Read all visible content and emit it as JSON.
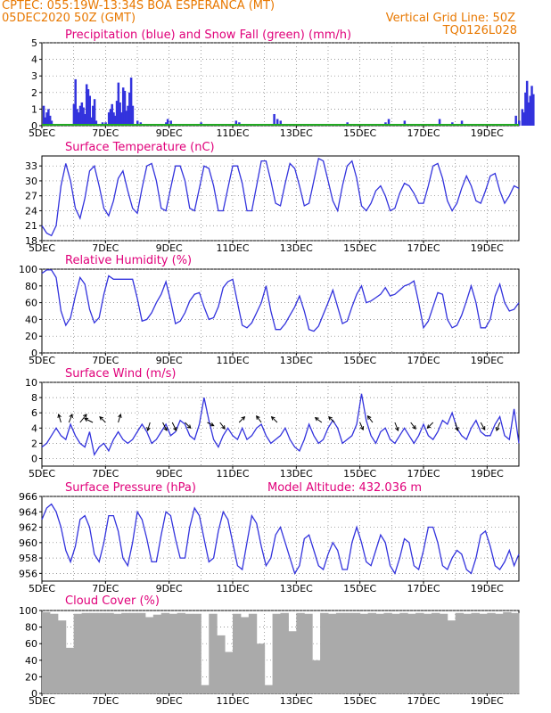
{
  "header": {
    "line1_left": "CPTEC:   055:19W-13:34S  BOA ESPERANCA (MT)",
    "line2_left": "05DEC2020 50Z (GMT)",
    "line2_right": "Vertical Grid Line: 50Z",
    "line3_right": "TQ0126L028",
    "header_color": "#e87800"
  },
  "colors": {
    "title": "#e0007a",
    "line": "#3333dd",
    "snow": "#22aa22",
    "cloud": "#aaaaaa",
    "axis": "#000000"
  },
  "date_ticks": [
    "5DEC",
    "7DEC",
    "9DEC",
    "11DEC",
    "13DEC",
    "15DEC",
    "17DEC",
    "19DEC"
  ],
  "chart_data": [
    {
      "type": "bar",
      "title": "Precipitation (blue) and Snow Fall (green) (mm/h)",
      "ylim": [
        0,
        5
      ],
      "yticks": [
        "0",
        "1",
        "2",
        "3",
        "4",
        "5"
      ],
      "xlim_days": [
        0,
        15
      ],
      "series": [
        {
          "name": "Precipitation",
          "x": [
            0.05,
            0.1,
            0.15,
            0.2,
            0.25,
            0.3,
            1.0,
            1.05,
            1.1,
            1.15,
            1.2,
            1.25,
            1.3,
            1.35,
            1.4,
            1.45,
            1.5,
            1.55,
            1.6,
            1.65,
            1.7,
            1.9,
            2.0,
            2.1,
            2.15,
            2.2,
            2.25,
            2.3,
            2.35,
            2.4,
            2.45,
            2.5,
            2.55,
            2.6,
            2.65,
            2.7,
            2.75,
            2.8,
            2.85,
            3.0,
            3.1,
            3.3,
            3.9,
            3.95,
            4.0,
            4.05,
            4.4,
            4.7,
            5.0,
            6.0,
            6.1,
            6.2,
            6.3,
            7.0,
            7.1,
            7.3,
            7.4,
            7.5,
            9.5,
            9.6,
            10.8,
            10.9,
            11.4,
            11.9,
            12.5,
            12.9,
            13.1,
            13.2,
            14.9,
            15.0,
            15.1,
            15.15,
            15.2,
            15.25,
            15.3,
            15.35,
            15.4,
            15.45,
            18.5
          ],
          "values": [
            1.2,
            0.5,
            0.8,
            1.0,
            0.6,
            0.3,
            1.3,
            2.8,
            1.0,
            0.8,
            1.2,
            1.4,
            1.1,
            0.7,
            2.5,
            2.2,
            1.8,
            0.5,
            1.2,
            1.6,
            0.3,
            0.2,
            0.2,
            0.8,
            1.0,
            1.3,
            0.8,
            0.6,
            1.5,
            2.6,
            1.4,
            0.8,
            2.3,
            2.1,
            0.9,
            1.2,
            2.0,
            2.9,
            1.2,
            0.3,
            0.2,
            0.1,
            0.2,
            0.4,
            0.1,
            0.3,
            0.1,
            0.1,
            0.2,
            0.1,
            0.3,
            0.2,
            0.1,
            0.1,
            0.1,
            0.7,
            0.4,
            0.3,
            0.1,
            0.2,
            0.2,
            0.4,
            0.3,
            0.1,
            0.4,
            0.2,
            0.1,
            0.3,
            0.6,
            0.3,
            1.0,
            0.8,
            2.0,
            2.7,
            1.4,
            1.8,
            2.4,
            1.9,
            0.9
          ]
        },
        {
          "name": "Snow Fall",
          "values": [
            0
          ]
        }
      ]
    },
    {
      "type": "line",
      "title": "Surface Temperature (nC)",
      "ylim": [
        18,
        35
      ],
      "yticks": [
        "18",
        "21",
        "24",
        "27",
        "30",
        "33"
      ],
      "xlim_days": [
        0,
        15
      ],
      "x": [
        0,
        0.15,
        0.3,
        0.45,
        0.6,
        0.75,
        0.9,
        1.05,
        1.2,
        1.35,
        1.5,
        1.65,
        1.8,
        1.95,
        2.1,
        2.25,
        2.4,
        2.55,
        2.7,
        2.85,
        3.0,
        3.15,
        3.3,
        3.45,
        3.6,
        3.75,
        3.9,
        4.05,
        4.2,
        4.35,
        4.5,
        4.65,
        4.8,
        4.95,
        5.1,
        5.25,
        5.4,
        5.55,
        5.7,
        5.85,
        6.0,
        6.15,
        6.3,
        6.45,
        6.6,
        6.75,
        6.9,
        7.05,
        7.2,
        7.35,
        7.5,
        7.65,
        7.8,
        7.95,
        8.1,
        8.25,
        8.4,
        8.55,
        8.7,
        8.85,
        9.0,
        9.15,
        9.3,
        9.45,
        9.6,
        9.75,
        9.9,
        10.05,
        10.2,
        10.35,
        10.5,
        10.65,
        10.8,
        10.95,
        11.1,
        11.25,
        11.4,
        11.55,
        11.7,
        11.85,
        12.0,
        12.15,
        12.3,
        12.45,
        12.6,
        12.75,
        12.9,
        13.05,
        13.2,
        13.35,
        13.5,
        13.65,
        13.8,
        13.95,
        14.1,
        14.25,
        14.4,
        14.55,
        14.7,
        14.85,
        15.0
      ],
      "values": [
        21,
        19.5,
        19,
        21,
        29,
        33.5,
        30,
        24.5,
        22.5,
        26.5,
        32,
        33,
        29,
        24.5,
        23,
        26,
        30.5,
        32,
        28,
        24.5,
        23.5,
        28.5,
        33,
        33.5,
        30,
        24.5,
        24,
        28.5,
        33,
        33,
        30,
        24.5,
        24,
        28.5,
        33,
        32.5,
        29,
        24,
        24,
        28.5,
        33,
        33,
        29.5,
        24,
        24,
        29,
        34,
        34,
        30,
        25.5,
        25,
        29.5,
        33.5,
        32.5,
        29,
        25,
        25.5,
        30,
        34.5,
        34,
        30,
        26,
        24,
        29,
        33,
        34,
        30.5,
        25,
        24,
        25.5,
        28,
        29,
        27,
        24,
        24.5,
        27.5,
        29.5,
        29,
        27.5,
        25.5,
        25.5,
        29,
        33,
        33.5,
        30.5,
        26,
        24,
        25.5,
        28.5,
        31,
        29,
        26,
        25.5,
        28,
        31,
        31.5,
        28,
        25.5,
        27,
        29,
        28.5
      ]
    },
    {
      "type": "line",
      "title": "Relative Humidity (%)",
      "ylim": [
        0,
        100
      ],
      "yticks": [
        "0",
        "20",
        "40",
        "60",
        "80",
        "100"
      ],
      "xlim_days": [
        0,
        15
      ],
      "x": [
        0,
        0.15,
        0.3,
        0.45,
        0.6,
        0.75,
        0.9,
        1.05,
        1.2,
        1.35,
        1.5,
        1.65,
        1.8,
        1.95,
        2.1,
        2.25,
        2.4,
        2.55,
        2.7,
        2.85,
        3.0,
        3.15,
        3.3,
        3.45,
        3.6,
        3.75,
        3.9,
        4.05,
        4.2,
        4.35,
        4.5,
        4.65,
        4.8,
        4.95,
        5.1,
        5.25,
        5.4,
        5.55,
        5.7,
        5.85,
        6.0,
        6.15,
        6.3,
        6.45,
        6.6,
        6.75,
        6.9,
        7.05,
        7.2,
        7.35,
        7.5,
        7.65,
        7.8,
        7.95,
        8.1,
        8.25,
        8.4,
        8.55,
        8.7,
        8.85,
        9.0,
        9.15,
        9.3,
        9.45,
        9.6,
        9.75,
        9.9,
        10.05,
        10.2,
        10.35,
        10.5,
        10.65,
        10.8,
        10.95,
        11.1,
        11.25,
        11.4,
        11.55,
        11.7,
        11.85,
        12.0,
        12.15,
        12.3,
        12.45,
        12.6,
        12.75,
        12.9,
        13.05,
        13.2,
        13.35,
        13.5,
        13.65,
        13.8,
        13.95,
        14.1,
        14.25,
        14.4,
        14.55,
        14.7,
        14.85,
        15.0
      ],
      "values": [
        95,
        99,
        99,
        90,
        50,
        33,
        42,
        68,
        90,
        82,
        52,
        36,
        42,
        70,
        92,
        88,
        88,
        88,
        88,
        88,
        65,
        38,
        40,
        48,
        60,
        70,
        85,
        62,
        35,
        38,
        48,
        62,
        70,
        72,
        55,
        40,
        42,
        55,
        78,
        85,
        88,
        60,
        33,
        30,
        36,
        48,
        60,
        80,
        50,
        28,
        28,
        35,
        45,
        55,
        68,
        50,
        28,
        26,
        32,
        46,
        60,
        75,
        55,
        35,
        38,
        55,
        70,
        80,
        60,
        62,
        66,
        70,
        78,
        68,
        70,
        75,
        80,
        82,
        86,
        60,
        30,
        38,
        55,
        72,
        70,
        40,
        30,
        33,
        45,
        62,
        80,
        60,
        30,
        30,
        40,
        68,
        82,
        60,
        50,
        52,
        60
      ]
    },
    {
      "type": "line",
      "title": "Surface Wind (m/s)",
      "ylim": [
        -1,
        10
      ],
      "yticks": [
        "0",
        "2",
        "4",
        "6",
        "8",
        "10"
      ],
      "xlim_days": [
        0,
        15
      ],
      "x": [
        0,
        0.15,
        0.3,
        0.45,
        0.6,
        0.75,
        0.9,
        1.05,
        1.2,
        1.35,
        1.5,
        1.65,
        1.8,
        1.95,
        2.1,
        2.25,
        2.4,
        2.55,
        2.7,
        2.85,
        3.0,
        3.15,
        3.3,
        3.45,
        3.6,
        3.75,
        3.9,
        4.05,
        4.2,
        4.35,
        4.5,
        4.65,
        4.8,
        4.95,
        5.1,
        5.25,
        5.4,
        5.55,
        5.7,
        5.85,
        6.0,
        6.15,
        6.3,
        6.45,
        6.6,
        6.75,
        6.9,
        7.05,
        7.2,
        7.35,
        7.5,
        7.65,
        7.8,
        7.95,
        8.1,
        8.25,
        8.4,
        8.55,
        8.7,
        8.85,
        9.0,
        9.15,
        9.3,
        9.45,
        9.6,
        9.75,
        9.9,
        10.05,
        10.2,
        10.35,
        10.5,
        10.65,
        10.8,
        10.95,
        11.1,
        11.25,
        11.4,
        11.55,
        11.7,
        11.85,
        12.0,
        12.15,
        12.3,
        12.45,
        12.6,
        12.75,
        12.9,
        13.05,
        13.2,
        13.35,
        13.5,
        13.65,
        13.8,
        13.95,
        14.1,
        14.25,
        14.4,
        14.55,
        14.7,
        14.85,
        15.0
      ],
      "values": [
        1.5,
        2,
        3,
        4,
        3,
        2.5,
        4.5,
        3,
        2,
        1.5,
        3.5,
        0.5,
        1.5,
        2,
        1,
        2.5,
        3.5,
        2.5,
        2,
        2.5,
        3.5,
        4.5,
        3.5,
        2,
        2.5,
        3.5,
        4.5,
        3,
        3.5,
        5,
        4.5,
        3,
        2.5,
        4.5,
        8,
        5,
        2.5,
        1.5,
        3,
        4,
        3,
        2.5,
        4,
        2.5,
        3,
        4,
        4.5,
        3,
        2,
        2.5,
        3,
        4,
        2.5,
        1.5,
        1,
        2.5,
        4.5,
        3,
        2,
        2.5,
        4,
        5,
        4,
        2,
        2.5,
        3,
        4.5,
        8.5,
        5,
        3,
        2,
        3.5,
        4,
        2.5,
        2,
        3,
        4,
        3,
        2,
        3,
        4.5,
        3,
        2.5,
        3.5,
        5,
        4.5,
        6,
        4,
        3,
        2.5,
        4,
        5,
        3.5,
        3,
        3,
        4.5,
        5.5,
        3,
        2.5,
        6.5,
        2
      ]
    },
    {
      "type": "line",
      "title": "Surface Pressure (hPa)",
      "annotation": "Model Altitude: 432.036 m",
      "ylim": [
        955,
        966
      ],
      "yticks": [
        "956",
        "958",
        "960",
        "962",
        "964",
        "966"
      ],
      "xlim_days": [
        0,
        15
      ],
      "x": [
        0,
        0.15,
        0.3,
        0.45,
        0.6,
        0.75,
        0.9,
        1.05,
        1.2,
        1.35,
        1.5,
        1.65,
        1.8,
        1.95,
        2.1,
        2.25,
        2.4,
        2.55,
        2.7,
        2.85,
        3.0,
        3.15,
        3.3,
        3.45,
        3.6,
        3.75,
        3.9,
        4.05,
        4.2,
        4.35,
        4.5,
        4.65,
        4.8,
        4.95,
        5.1,
        5.25,
        5.4,
        5.55,
        5.7,
        5.85,
        6.0,
        6.15,
        6.3,
        6.45,
        6.6,
        6.75,
        6.9,
        7.05,
        7.2,
        7.35,
        7.5,
        7.65,
        7.8,
        7.95,
        8.1,
        8.25,
        8.4,
        8.55,
        8.7,
        8.85,
        9.0,
        9.15,
        9.3,
        9.45,
        9.6,
        9.75,
        9.9,
        10.05,
        10.2,
        10.35,
        10.5,
        10.65,
        10.8,
        10.95,
        11.1,
        11.25,
        11.4,
        11.55,
        11.7,
        11.85,
        12.0,
        12.15,
        12.3,
        12.45,
        12.6,
        12.75,
        12.9,
        13.05,
        13.2,
        13.35,
        13.5,
        13.65,
        13.8,
        13.95,
        14.1,
        14.25,
        14.4,
        14.55,
        14.7,
        14.85,
        15.0
      ],
      "values": [
        963,
        964.5,
        965,
        964,
        962,
        959,
        957.5,
        959.5,
        963,
        963.5,
        962,
        958.5,
        957.5,
        960,
        963.5,
        963.5,
        961.5,
        958,
        957,
        960,
        964,
        963,
        960.5,
        957.5,
        957.5,
        961,
        964,
        963.5,
        960.5,
        958,
        958,
        962,
        964.5,
        963.5,
        960.5,
        957.5,
        958,
        961.5,
        964,
        963,
        960,
        957,
        956.5,
        960,
        963.5,
        962.5,
        959.5,
        957,
        958,
        961,
        962,
        960,
        958,
        956,
        957,
        960.5,
        961,
        959,
        957,
        956.5,
        958.5,
        960,
        959,
        956.5,
        956.5,
        960,
        962,
        960,
        957.5,
        957,
        959,
        961,
        960,
        957,
        956,
        958,
        960.5,
        960,
        957,
        956.5,
        959,
        962,
        962,
        960,
        957,
        956.5,
        958,
        959,
        958.5,
        956.5,
        956,
        958,
        961,
        961.5,
        959.5,
        957,
        956.5,
        957.5,
        959,
        957,
        958.5
      ]
    },
    {
      "type": "bar",
      "title": "Cloud Cover (%)",
      "ylim": [
        0,
        100
      ],
      "yticks": [
        "0",
        "20",
        "40",
        "60",
        "80",
        "100"
      ],
      "xlim_days": [
        0,
        15
      ],
      "x": [
        0,
        0.25,
        0.5,
        0.75,
        1.0,
        1.25,
        1.5,
        1.75,
        2.0,
        2.25,
        2.5,
        2.75,
        3.0,
        3.25,
        3.5,
        3.75,
        4.0,
        4.25,
        4.5,
        4.75,
        5.0,
        5.25,
        5.5,
        5.75,
        6.0,
        6.25,
        6.5,
        6.75,
        7.0,
        7.25,
        7.5,
        7.75,
        8.0,
        8.25,
        8.5,
        8.75,
        9.0,
        9.25,
        9.5,
        9.75,
        10.0,
        10.25,
        10.5,
        10.75,
        11.0,
        11.25,
        11.5,
        11.75,
        12.0,
        12.25,
        12.5,
        12.75,
        13.0,
        13.25,
        13.5,
        13.75,
        14.0,
        14.25,
        14.5,
        14.75
      ],
      "values": [
        98,
        96,
        88,
        55,
        96,
        97,
        97,
        97,
        97,
        96,
        97,
        97,
        97,
        92,
        95,
        97,
        96,
        97,
        96,
        96,
        10,
        96,
        70,
        50,
        96,
        92,
        96,
        60,
        10,
        96,
        97,
        75,
        97,
        96,
        40,
        97,
        96,
        97,
        97,
        97,
        96,
        97,
        96,
        97,
        96,
        97,
        96,
        97,
        96,
        97,
        96,
        88,
        97,
        96,
        97,
        96,
        97,
        96,
        98,
        97
      ]
    }
  ]
}
